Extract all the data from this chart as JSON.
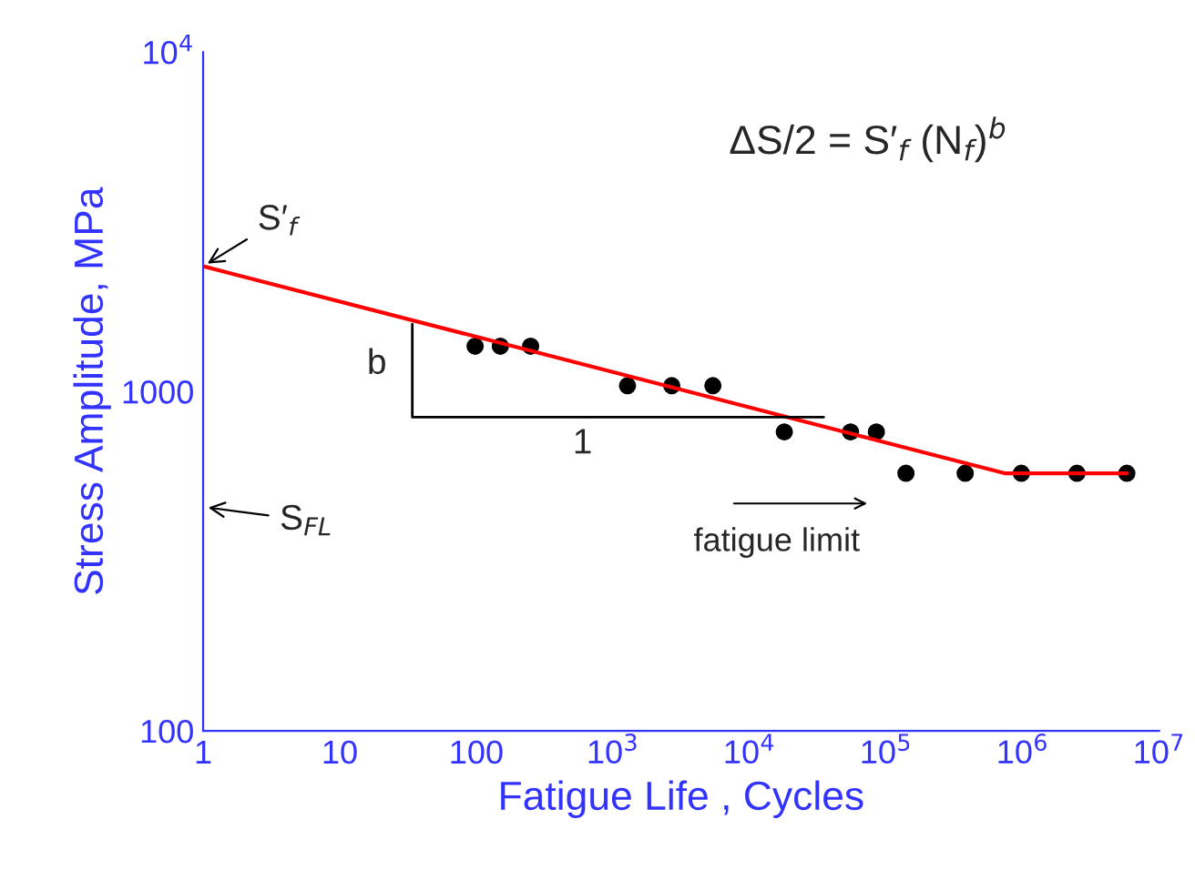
{
  "chart_data": {
    "type": "scatter",
    "xlabel": "Fatigue Life , Cycles",
    "ylabel": "Stress Amplitude, MPa",
    "log": "xy",
    "grid": false,
    "xlim": [
      1,
      10000000
    ],
    "ylim": [
      100,
      10000
    ],
    "xticks": [
      1,
      10,
      100,
      {
        "value": 1000,
        "label": "10$^{3}$"
      },
      {
        "value": 10000,
        "label": "10$^{4}$"
      },
      {
        "value": 100000,
        "label": "10$^{5}$"
      },
      {
        "value": 1000000,
        "label": "10$^{6}$"
      },
      {
        "value": 10000000,
        "label": "10$^{7}$"
      }
    ],
    "yticks": [
      100,
      1000,
      {
        "value": 10000,
        "label": "10$^{4}$"
      }
    ],
    "series": [
      {
        "color": "#000000",
        "marker": "circle",
        "x": [
          98,
          150,
          250,
          1280,
          2700,
          5400,
          18000,
          55000,
          85000,
          140000,
          380000,
          980000,
          2500000,
          5800000
        ],
        "values": [
          1360,
          1360,
          1360,
          1040,
          1040,
          1040,
          760,
          760,
          760,
          574,
          574,
          574,
          574,
          574
        ]
      },
      {
        "type": "line",
        "color": "#ff0000",
        "marker": "none",
        "x": [
          1,
          740000,
          5800000
        ],
        "values": [
          2340,
          574,
          574
        ]
      },
      {
        "type": "line",
        "color": "#000000",
        "marker": "none",
        "x": [
          34,
          34,
          35000
        ],
        "values": [
          1580,
          840,
          840
        ]
      }
    ],
    "annotations": [
      {
        "text": "ΔS/2 = S′$_{f}$ (N$_{f}$)$^{b}$"
      },
      {
        "text": "S′$_{f}$",
        "x": 1,
        "y": 2340
      },
      "S$_{FL}$",
      "fatigue limit",
      {
        "text": "b",
        "x": 34,
        "y": 1200
      },
      {
        "text": "1",
        "x": 600,
        "y": 840
      }
    ]
  }
}
